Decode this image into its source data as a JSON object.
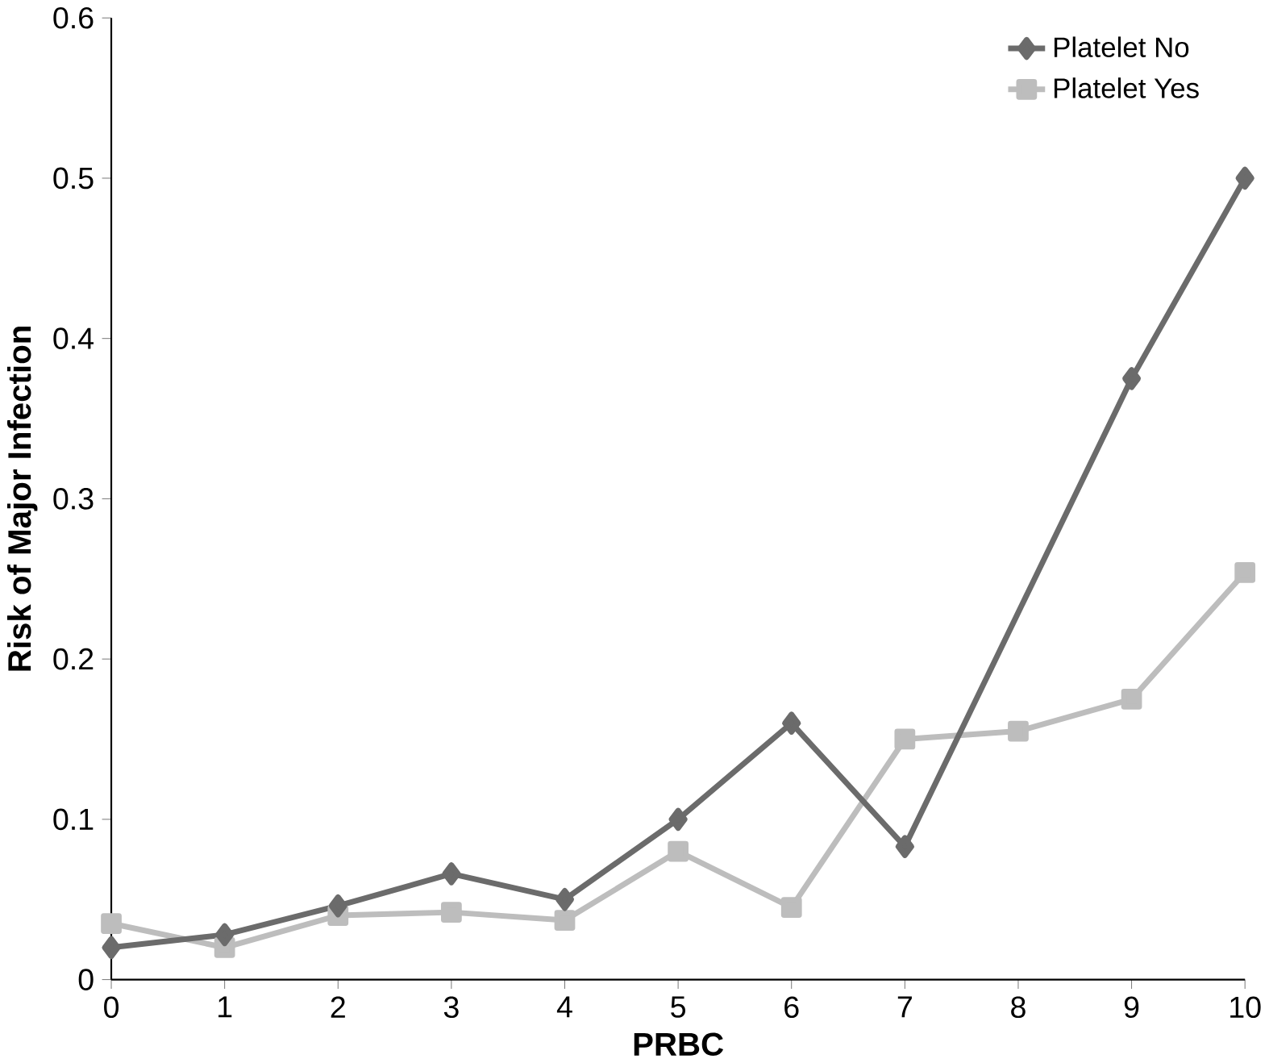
{
  "chart_data": {
    "type": "line",
    "xlabel": "PRBC",
    "ylabel": "Risk of Major Infection",
    "xlim": [
      0,
      10
    ],
    "ylim": [
      0,
      0.6
    ],
    "xticks": [
      0,
      1,
      2,
      3,
      4,
      5,
      6,
      7,
      8,
      9,
      10
    ],
    "yticks": [
      0,
      0.1,
      0.2,
      0.3,
      0.4,
      0.5,
      0.6
    ],
    "grid": false,
    "legend": "top right",
    "line_style": "solid",
    "series": [
      {
        "name": "Platelet No",
        "color": "#6b6b6b",
        "marker": "diamond",
        "x": [
          0,
          1,
          2,
          3,
          4,
          5,
          6,
          7,
          9,
          10
        ],
        "values": [
          0.02,
          0.028,
          0.046,
          0.066,
          0.05,
          0.1,
          0.16,
          0.083,
          0.375,
          0.5
        ]
      },
      {
        "name": "Platelet Yes",
        "color": "#bdbdbd",
        "marker": "square",
        "x": [
          0,
          1,
          2,
          3,
          4,
          5,
          6,
          7,
          8,
          9,
          10
        ],
        "values": [
          0.035,
          0.02,
          0.04,
          0.042,
          0.037,
          0.08,
          0.045,
          0.15,
          0.155,
          0.175,
          0.254
        ]
      }
    ]
  }
}
